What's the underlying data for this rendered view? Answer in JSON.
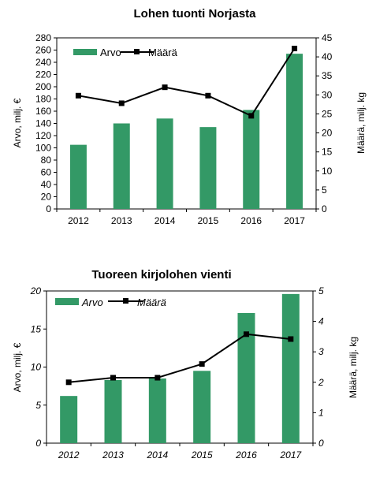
{
  "chart_data": [
    {
      "type": "bar+line",
      "title": "Lohen tuonti Norjasta",
      "categories": [
        "2012",
        "2013",
        "2014",
        "2015",
        "2016",
        "2017"
      ],
      "series": [
        {
          "name": "Arvo",
          "type": "bar",
          "axis": "left",
          "values": [
            105,
            140,
            148,
            134,
            162,
            254
          ]
        },
        {
          "name": "Määrä",
          "type": "line",
          "axis": "right",
          "values": [
            29.8,
            27.8,
            32.0,
            29.8,
            24.5,
            42.2
          ]
        }
      ],
      "ylabel": "Arvo, milj. €",
      "y2label": "Määrä, milj. kg",
      "ylim": [
        0,
        280
      ],
      "y2lim": [
        0,
        45
      ],
      "yticks": [
        "0",
        "20",
        "40",
        "60",
        "80",
        "100",
        "120",
        "140",
        "160",
        "180",
        "200",
        "220",
        "240",
        "260",
        "280"
      ],
      "y2ticks": [
        "0",
        "5",
        "10",
        "15",
        "20",
        "25",
        "30",
        "35",
        "40",
        "45"
      ],
      "grid": false,
      "legend": "top-left",
      "colors": {
        "bar": "#339966",
        "line": "#000000"
      }
    },
    {
      "type": "bar+line",
      "title": "Tuoreen kirjolohen vienti",
      "categories": [
        "2012",
        "2013",
        "2014",
        "2015",
        "2016",
        "2017"
      ],
      "series": [
        {
          "name": "Arvo",
          "type": "bar",
          "axis": "left",
          "values": [
            6.2,
            8.3,
            8.5,
            9.5,
            17.1,
            19.6
          ]
        },
        {
          "name": "Määrä",
          "type": "line",
          "axis": "right",
          "values": [
            2.0,
            2.15,
            2.15,
            2.6,
            3.58,
            3.42
          ]
        }
      ],
      "ylabel": "Arvo, milj. €",
      "y2label": "Määrä, milj. kg",
      "ylim": [
        0,
        20
      ],
      "y2lim": [
        0,
        5
      ],
      "yticks": [
        "0",
        "5",
        "10",
        "15",
        "20"
      ],
      "y2ticks": [
        "0",
        "1",
        "2",
        "3",
        "4",
        "5"
      ],
      "grid": false,
      "legend": "top-left",
      "colors": {
        "bar": "#339966",
        "line": "#000000"
      }
    }
  ]
}
